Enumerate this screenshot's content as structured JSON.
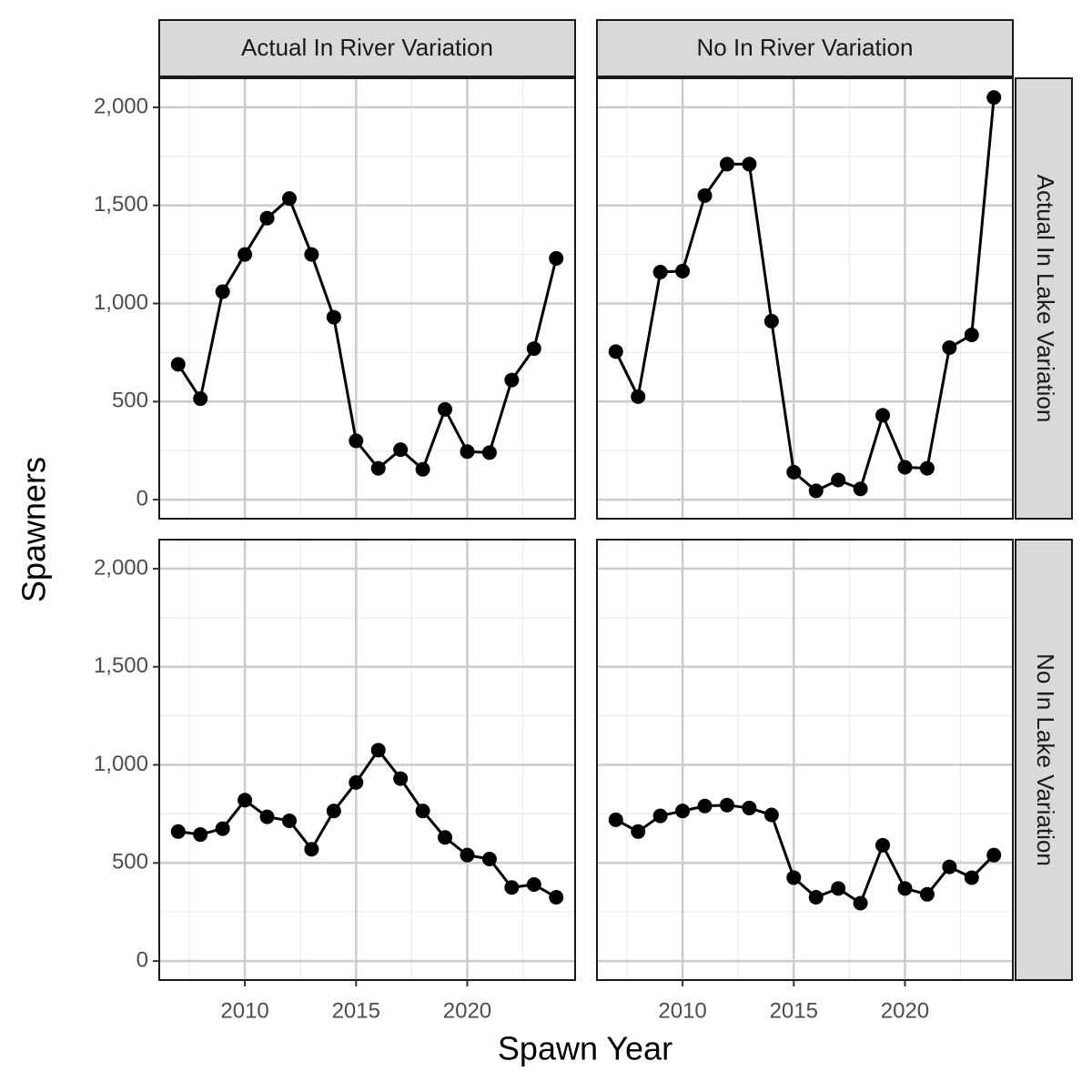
{
  "chart_data": {
    "type": "line",
    "xlabel": "Spawn Year",
    "ylabel": "Spawners",
    "columns": [
      "Actual In River Variation",
      "No In River Variation"
    ],
    "rows": [
      "Actual In Lake Variation",
      "No In Lake Variation"
    ],
    "x": [
      2007,
      2008,
      2009,
      2010,
      2011,
      2012,
      2013,
      2014,
      2015,
      2016,
      2017,
      2018,
      2019,
      2020,
      2021,
      2022,
      2023,
      2024
    ],
    "xlim": [
      2006.15,
      2024.85
    ],
    "xticks": [
      2010,
      2015,
      2020
    ],
    "xminor": [
      2007.5,
      2012.5,
      2017.5,
      2022.5
    ],
    "ylim": [
      -97,
      2148
    ],
    "yticks": [
      0,
      500,
      {
        "value": 1000,
        "label": "1,000"
      },
      {
        "value": 1500,
        "label": "1,500"
      },
      {
        "value": 2000,
        "label": "2,000"
      }
    ],
    "yminor": [
      250,
      750,
      1250,
      1750
    ],
    "grid": true,
    "color": "#000000",
    "panels": [
      {
        "values": [
          690,
          515,
          1060,
          1250,
          1435,
          1535,
          1250,
          930,
          300,
          160,
          255,
          155,
          460,
          245,
          240,
          610,
          770,
          1230
        ]
      },
      {
        "values": [
          755,
          525,
          1160,
          1165,
          1550,
          1710,
          1710,
          910,
          140,
          45,
          100,
          55,
          430,
          165,
          160,
          775,
          840,
          2050
        ]
      },
      {
        "values": [
          660,
          645,
          675,
          820,
          735,
          715,
          570,
          765,
          910,
          1075,
          930,
          765,
          630,
          540,
          520,
          375,
          390,
          325
        ]
      },
      {
        "values": [
          720,
          660,
          740,
          765,
          790,
          795,
          780,
          745,
          425,
          325,
          370,
          295,
          590,
          370,
          340,
          480,
          425,
          540
        ]
      }
    ]
  }
}
